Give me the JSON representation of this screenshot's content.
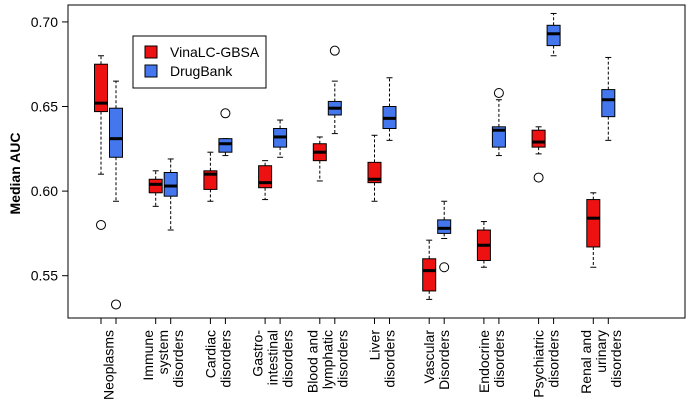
{
  "chart_data": {
    "type": "boxplot",
    "title": "",
    "xlabel": "",
    "ylabel": "Median AUC",
    "ylim": [
      0.525,
      0.71
    ],
    "yticks": [
      0.55,
      0.6,
      0.65,
      0.7
    ],
    "ytick_labels": [
      "0.55",
      "0.60",
      "0.65",
      "0.70"
    ],
    "legend": {
      "position": "top-left",
      "entries": [
        {
          "name": "VinaLC-GBSA",
          "color": "#ee1111"
        },
        {
          "name": "DrugBank",
          "color": "#4477ee"
        }
      ]
    },
    "categories": [
      {
        "id": "neoplasms",
        "lines": [
          "Neoplasms"
        ]
      },
      {
        "id": "immune",
        "lines": [
          "Immune",
          "system",
          "disorders"
        ]
      },
      {
        "id": "cardiac",
        "lines": [
          "Cardiac",
          "disorders"
        ]
      },
      {
        "id": "gastro",
        "lines": [
          "Gastro-",
          "intestinal",
          "disorders"
        ]
      },
      {
        "id": "blood",
        "lines": [
          "Blood and",
          "lymphatic",
          "disorders"
        ]
      },
      {
        "id": "liver",
        "lines": [
          "Liver",
          "disorders"
        ]
      },
      {
        "id": "vascular",
        "lines": [
          "Vascular",
          "Disorders"
        ]
      },
      {
        "id": "endocrine",
        "lines": [
          "Endocrine",
          "disorders"
        ]
      },
      {
        "id": "psychiatric",
        "lines": [
          "Psychiatric",
          "disorders"
        ]
      },
      {
        "id": "renal",
        "lines": [
          "Renal and",
          "urinary",
          "disorders"
        ]
      }
    ],
    "series": [
      {
        "name": "VinaLC-GBSA",
        "color": "#ee1111",
        "boxes": [
          {
            "whisker_low": 0.61,
            "q1": 0.647,
            "median": 0.652,
            "q3": 0.675,
            "whisker_high": 0.68,
            "outliers": [
              0.58
            ]
          },
          {
            "whisker_low": 0.591,
            "q1": 0.599,
            "median": 0.604,
            "q3": 0.607,
            "whisker_high": 0.612,
            "outliers": []
          },
          {
            "whisker_low": 0.594,
            "q1": 0.601,
            "median": 0.61,
            "q3": 0.612,
            "whisker_high": 0.623,
            "outliers": []
          },
          {
            "whisker_low": 0.595,
            "q1": 0.602,
            "median": 0.605,
            "q3": 0.615,
            "whisker_high": 0.618,
            "outliers": []
          },
          {
            "whisker_low": 0.606,
            "q1": 0.618,
            "median": 0.623,
            "q3": 0.628,
            "whisker_high": 0.632,
            "outliers": []
          },
          {
            "whisker_low": 0.594,
            "q1": 0.605,
            "median": 0.607,
            "q3": 0.617,
            "whisker_high": 0.633,
            "outliers": []
          },
          {
            "whisker_low": 0.536,
            "q1": 0.541,
            "median": 0.553,
            "q3": 0.56,
            "whisker_high": 0.571,
            "outliers": []
          },
          {
            "whisker_low": 0.555,
            "q1": 0.559,
            "median": 0.568,
            "q3": 0.577,
            "whisker_high": 0.582,
            "outliers": []
          },
          {
            "whisker_low": 0.622,
            "q1": 0.626,
            "median": 0.629,
            "q3": 0.636,
            "whisker_high": 0.638,
            "outliers": [
              0.608
            ]
          },
          {
            "whisker_low": 0.555,
            "q1": 0.567,
            "median": 0.584,
            "q3": 0.595,
            "whisker_high": 0.599,
            "outliers": []
          }
        ]
      },
      {
        "name": "DrugBank",
        "color": "#4477ee",
        "boxes": [
          {
            "whisker_low": 0.594,
            "q1": 0.62,
            "median": 0.631,
            "q3": 0.649,
            "whisker_high": 0.665,
            "outliers": [
              0.533
            ]
          },
          {
            "whisker_low": 0.577,
            "q1": 0.597,
            "median": 0.603,
            "q3": 0.611,
            "whisker_high": 0.619,
            "outliers": []
          },
          {
            "whisker_low": 0.621,
            "q1": 0.623,
            "median": 0.628,
            "q3": 0.631,
            "whisker_high": 0.631,
            "outliers": [
              0.646
            ]
          },
          {
            "whisker_low": 0.62,
            "q1": 0.626,
            "median": 0.632,
            "q3": 0.637,
            "whisker_high": 0.642,
            "outliers": []
          },
          {
            "whisker_low": 0.634,
            "q1": 0.645,
            "median": 0.649,
            "q3": 0.653,
            "whisker_high": 0.665,
            "outliers": [
              0.683
            ]
          },
          {
            "whisker_low": 0.63,
            "q1": 0.637,
            "median": 0.643,
            "q3": 0.65,
            "whisker_high": 0.667,
            "outliers": []
          },
          {
            "whisker_low": 0.572,
            "q1": 0.575,
            "median": 0.578,
            "q3": 0.583,
            "whisker_high": 0.594,
            "outliers": [
              0.555
            ]
          },
          {
            "whisker_low": 0.621,
            "q1": 0.626,
            "median": 0.636,
            "q3": 0.638,
            "whisker_high": 0.654,
            "outliers": [
              0.658
            ]
          },
          {
            "whisker_low": 0.68,
            "q1": 0.686,
            "median": 0.693,
            "q3": 0.698,
            "whisker_high": 0.705,
            "outliers": []
          },
          {
            "whisker_low": 0.63,
            "q1": 0.644,
            "median": 0.654,
            "q3": 0.66,
            "whisker_high": 0.679,
            "outliers": []
          }
        ]
      }
    ]
  }
}
